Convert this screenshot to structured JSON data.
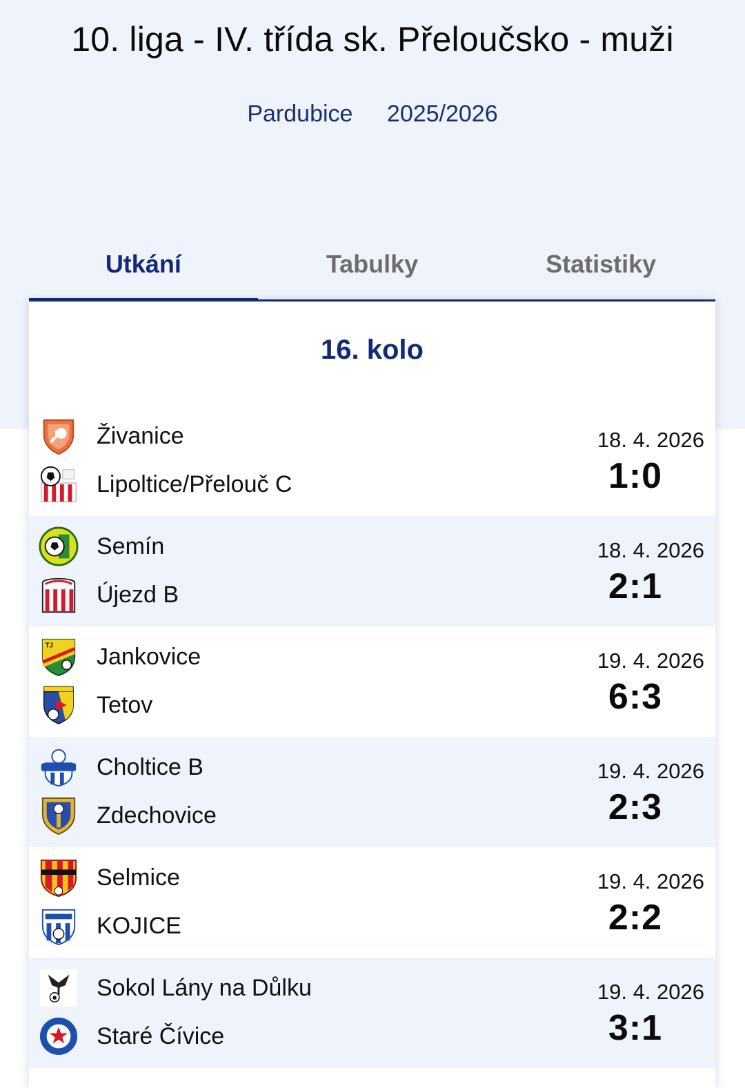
{
  "league_title": "10. liga - IV. třída sk. Přeloučsko - muži",
  "region": "Pardubice",
  "season": "2025/2026",
  "tabs": [
    {
      "label": "Utkání",
      "active": true
    },
    {
      "label": "Tabulky",
      "active": false
    },
    {
      "label": "Statistiky",
      "active": false
    }
  ],
  "round_title": "16. kolo",
  "matches": [
    {
      "home": "Živanice",
      "away": "Lipoltice/Přelouč C",
      "date": "18. 4. 2026",
      "score": "1:0",
      "home_logo": "zivanice-crest",
      "away_logo": "lipoltice-crest"
    },
    {
      "home": "Semín",
      "away": "Újezd B",
      "date": "18. 4. 2026",
      "score": "2:1",
      "home_logo": "semin-crest",
      "away_logo": "ujezd-crest"
    },
    {
      "home": "Jankovice",
      "away": "Tetov",
      "date": "19. 4. 2026",
      "score": "6:3",
      "home_logo": "jankovice-crest",
      "away_logo": "tetov-crest"
    },
    {
      "home": "Choltice B",
      "away": "Zdechovice",
      "date": "19. 4. 2026",
      "score": "2:3",
      "home_logo": "choltice-crest",
      "away_logo": "zdechovice-crest"
    },
    {
      "home": "Selmice",
      "away": "KOJICE",
      "date": "19. 4. 2026",
      "score": "2:2",
      "home_logo": "selmice-crest",
      "away_logo": "kojice-crest"
    },
    {
      "home": "Sokol Lány na Důlku",
      "away": "Staré Čívice",
      "date": "19. 4. 2026",
      "score": "3:1",
      "home_logo": "lany-crest",
      "away_logo": "civice-crest"
    }
  ],
  "colors": {
    "brand_navy": "#12297a",
    "hero_bg": "#eef3fc",
    "tab_inactive": "#6d6d6d"
  }
}
